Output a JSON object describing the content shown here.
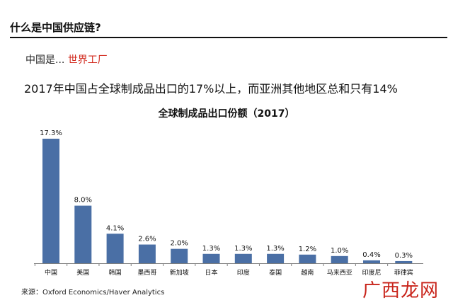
{
  "header": {
    "title": "什么是中国供应链?"
  },
  "intro": {
    "prefix": "中国是... ",
    "highlight": "世界工厂"
  },
  "statement": "2017年中国占全球制成品出口的17%以上，而亚洲其他地区总和只有14%",
  "chart_data": {
    "type": "bar",
    "title": "全球制成品出口份额（2017）",
    "categories": [
      "中国",
      "美国",
      "韩国",
      "墨西哥",
      "新加坡",
      "日本",
      "印度",
      "泰国",
      "越南",
      "马来西亚",
      "印度尼",
      "菲律宾"
    ],
    "values": [
      17.3,
      8.0,
      4.1,
      2.6,
      2.0,
      1.3,
      1.3,
      1.3,
      1.2,
      1.0,
      0.4,
      0.3
    ],
    "value_labels": [
      "17.3%",
      "8.0%",
      "4.1%",
      "2.6%",
      "2.0%",
      "1.3%",
      "1.3%",
      "1.3%",
      "1.2%",
      "1.0%",
      "0.4%",
      "0.3%"
    ],
    "ylim": [
      0,
      17.3
    ],
    "xlabel": "",
    "ylabel": "",
    "grid": false,
    "bar_color": "#4a6fa5"
  },
  "source": "来源：Oxford Economics/Haver Analytics",
  "watermark": "广西龙网"
}
